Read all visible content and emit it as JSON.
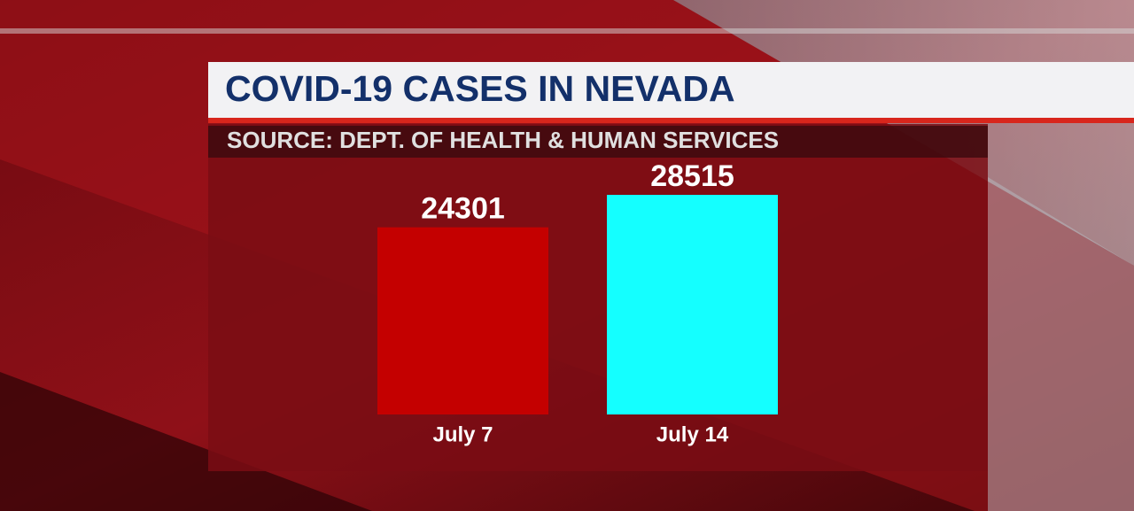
{
  "chart_data": {
    "type": "bar",
    "title": "COVID-19 CASES IN NEVADA",
    "subtitle": "SOURCE: DEPT. OF HEALTH & HUMAN SERVICES",
    "categories": [
      "July 7",
      "July 14"
    ],
    "values": [
      24301,
      28515
    ],
    "colors": [
      "#c40000",
      "#14ffff"
    ]
  }
}
